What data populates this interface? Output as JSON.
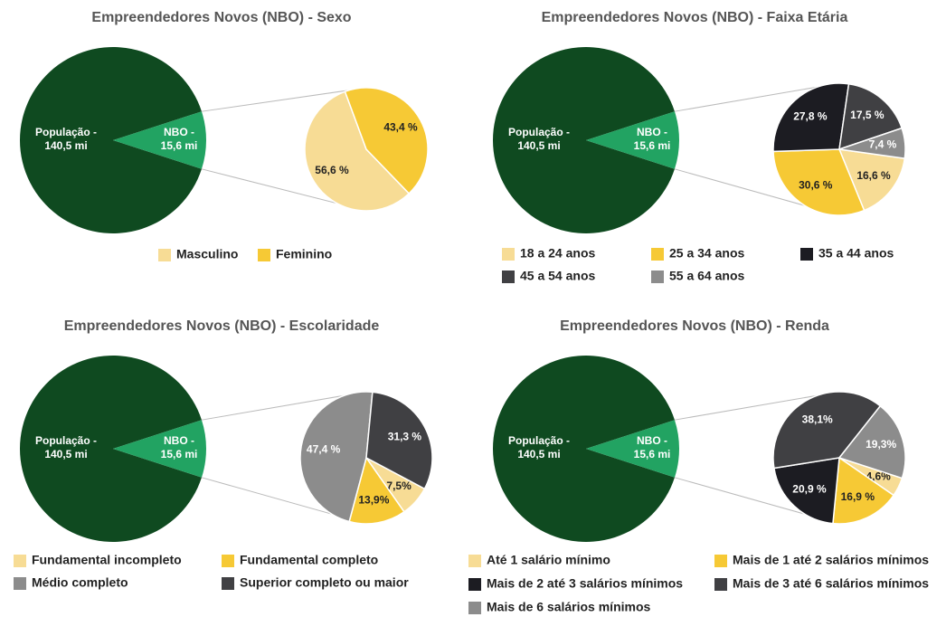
{
  "chart_data": [
    {
      "type": "pie-of-pie",
      "title": "Empreendedores Novos (NBO)  - Sexo",
      "main": {
        "categories": [
          "População -",
          "NBO -"
        ],
        "values": [
          140.5,
          15.6
        ],
        "value_labels": [
          "140,5 mi",
          "15,6 mi"
        ],
        "colors": [
          "#0f4a20",
          "#22a362"
        ]
      },
      "categories": [
        "Masculino",
        "Feminino"
      ],
      "values": [
        56.6,
        43.4
      ],
      "value_labels": [
        "56,6 %",
        "43,4 %"
      ],
      "colors": [
        "#f7dc95",
        "#f6c935"
      ]
    },
    {
      "type": "pie-of-pie",
      "title": "Empreendedores Novos (NBO)  - Faixa Etária",
      "main": {
        "categories": [
          "População -",
          "NBO -"
        ],
        "values": [
          140.5,
          15.6
        ],
        "value_labels": [
          "140,5 mi",
          "15,6 mi"
        ],
        "colors": [
          "#0f4a20",
          "#22a362"
        ]
      },
      "categories": [
        "18 a 24 anos",
        "25 a 34 anos",
        "35 a 44 anos",
        "45 a 54 anos",
        "55 a 64 anos"
      ],
      "values": [
        16.6,
        30.6,
        27.8,
        17.5,
        7.4
      ],
      "value_labels": [
        "16,6 %",
        "30,6 %",
        "27,8 %",
        "17,5 %",
        "7,4 %"
      ],
      "colors": [
        "#f7dc95",
        "#f6c935",
        "#1c1c22",
        "#404043",
        "#8c8c8c"
      ]
    },
    {
      "type": "pie-of-pie",
      "title": "Empreendedores Novos (NBO)  - Escolaridade",
      "main": {
        "categories": [
          "População -",
          "NBO -"
        ],
        "values": [
          140.5,
          15.6
        ],
        "value_labels": [
          "140,5 mi",
          "15,6 mi"
        ],
        "colors": [
          "#0f4a20",
          "#22a362"
        ]
      },
      "categories": [
        "Fundamental incompleto",
        "Fundamental completo",
        "Médio completo",
        "Superior completo ou maior"
      ],
      "values": [
        7.5,
        13.9,
        47.4,
        31.3
      ],
      "value_labels": [
        "7,5%",
        "13,9%",
        "47,4 %",
        "31,3 %"
      ],
      "colors": [
        "#f7dc95",
        "#f6c935",
        "#8c8c8c",
        "#404043"
      ]
    },
    {
      "type": "pie-of-pie",
      "title": "Empreendedores Novos (NBO)  - Renda",
      "main": {
        "categories": [
          "População -",
          "NBO -"
        ],
        "values": [
          140.5,
          15.6
        ],
        "value_labels": [
          "140,5 mi",
          "15,6 mi"
        ],
        "colors": [
          "#0f4a20",
          "#22a362"
        ]
      },
      "categories": [
        "Até 1 salário mínimo",
        "Mais de 1 até 2 salários mínimos",
        "Mais de 2 até 3 salários mínimos",
        "Mais de 3 até 6 salários mínimos",
        "Mais de 6 salários mínimos"
      ],
      "values": [
        4.6,
        16.9,
        20.9,
        38.1,
        19.3
      ],
      "value_labels": [
        "4,6%",
        "16,9 %",
        "20,9 %",
        "38,1%",
        "19,3%"
      ],
      "colors": [
        "#f7dc95",
        "#f6c935",
        "#1c1c22",
        "#404043",
        "#8c8c8c"
      ]
    }
  ]
}
